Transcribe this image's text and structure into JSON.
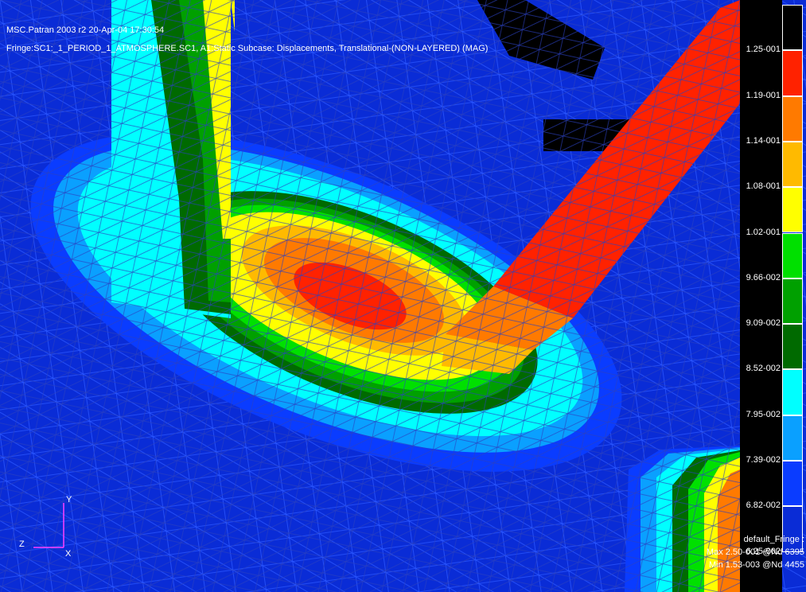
{
  "header": {
    "line1": "MSC.Patran 2003 r2 20-Apr-04 17:30:54",
    "line2": "Fringe:SC1:_1_PERIOD_1_ATMOSPHERE.SC1, A1:Static Subcase: Displacements, Translational-(NON-LAYERED) (MAG)"
  },
  "legend": {
    "ticks": [
      "1.25-001",
      "1.19-001",
      "1.14-001",
      "1.08-001",
      "1.02-001",
      "9.66-002",
      "9.09-002",
      "8.52-002",
      "7.95-002",
      "7.39-002",
      "6.82-002",
      "6.25-002"
    ],
    "band_colors": [
      "#000000",
      "#ff2200",
      "#ff7a00",
      "#ffba00",
      "#ffff00",
      "#00e000",
      "#00a000",
      "#006a00",
      "#00ffff",
      "#0aa0ff",
      "#0a3cff",
      "#0a2cd6"
    ]
  },
  "footer": {
    "title": "default_Fringe :",
    "max": "Max 2.50-001 @Nd 6395",
    "min": "Min 1.53-003 @Nd 4455"
  },
  "axes": {
    "y": "Y",
    "z": "Z",
    "x": "X"
  }
}
